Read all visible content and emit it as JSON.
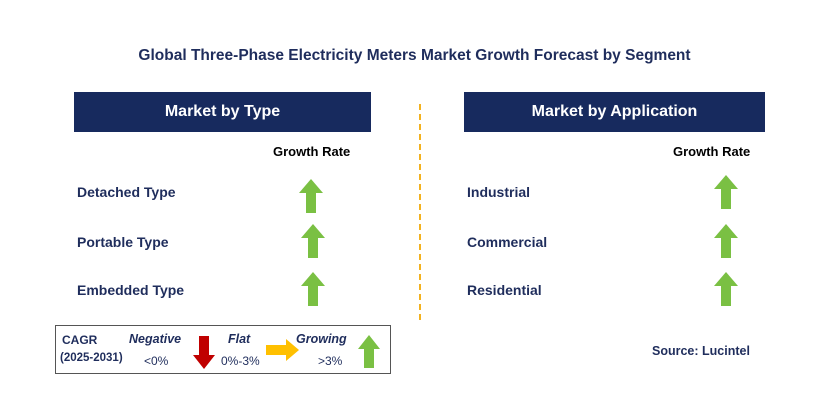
{
  "title": "Global Three-Phase Electricity Meters Market Growth Forecast by Segment",
  "left_panel": {
    "header": "Market by Type",
    "growth_label": "Growth Rate",
    "rows": [
      {
        "label": "Detached Type",
        "trend": "growing"
      },
      {
        "label": "Portable Type",
        "trend": "growing"
      },
      {
        "label": "Embedded Type",
        "trend": "growing"
      }
    ]
  },
  "right_panel": {
    "header": "Market by Application",
    "growth_label": "Growth Rate",
    "rows": [
      {
        "label": "Industrial",
        "trend": "growing"
      },
      {
        "label": "Commercial",
        "trend": "growing"
      },
      {
        "label": "Residential",
        "trend": "growing"
      }
    ]
  },
  "legend": {
    "cagr_label": "CAGR",
    "period": "(2025-2031)",
    "negative": {
      "label": "Negative",
      "range": "<0%",
      "color": "#c00000",
      "icon": "down-arrow-icon"
    },
    "flat": {
      "label": "Flat",
      "range": "0%-3%",
      "color": "#ffc000",
      "icon": "right-arrow-icon"
    },
    "growing": {
      "label": "Growing",
      "range": ">3%",
      "color": "#7ac043",
      "icon": "up-arrow-icon"
    }
  },
  "source": "Source: Lucintel",
  "colors": {
    "header_bg": "#172a5e",
    "text": "#1f2d5c",
    "divider": "#f3b21f",
    "growth_arrow": "#7ac043"
  }
}
